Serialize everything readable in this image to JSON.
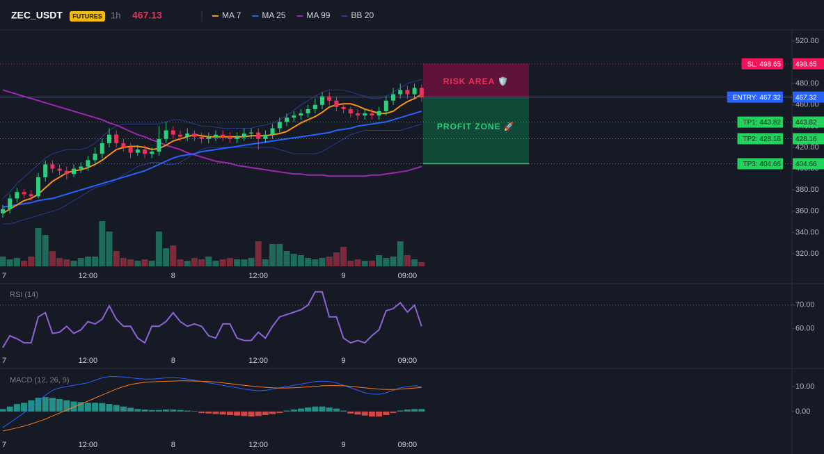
{
  "header": {
    "symbol": "ZEC_USDT",
    "badge": "FUTURES",
    "interval": "1h",
    "price": "467.13"
  },
  "chart_data": [
    {
      "type": "candlestick",
      "xticks": [
        {
          "value": 0,
          "label": "7"
        },
        {
          "value": 12,
          "label": "12:00"
        },
        {
          "value": 24,
          "label": "8"
        },
        {
          "value": 36,
          "label": "12:00"
        },
        {
          "value": 48,
          "label": "9"
        },
        {
          "value": 57,
          "label": "09:00"
        }
      ],
      "ylim": [
        308.2,
        530.5
      ],
      "yticks": [
        {
          "value": 320,
          "label": "320.00"
        },
        {
          "value": 340,
          "label": "340.00"
        },
        {
          "value": 360,
          "label": "360.00"
        },
        {
          "value": 380,
          "label": "380.00"
        },
        {
          "value": 400,
          "label": "400.00"
        },
        {
          "value": 420,
          "label": "420.00"
        },
        {
          "value": 440,
          "label": "440.00"
        },
        {
          "value": 460,
          "label": "460.00"
        },
        {
          "value": 480,
          "label": "480.00"
        },
        {
          "value": 500,
          "label": "500.00"
        },
        {
          "value": 520,
          "label": "520.00"
        }
      ],
      "up_color": "#2bd07f",
      "down_color": "#f0305a",
      "open": [
        358,
        362,
        372,
        378,
        376,
        374,
        392,
        404,
        400,
        398,
        395,
        400,
        402,
        408,
        414,
        424,
        432,
        424,
        420,
        415,
        418,
        414,
        416,
        428,
        436,
        432,
        430,
        433,
        430,
        428,
        430,
        432,
        430,
        428,
        430,
        433,
        434,
        428,
        432,
        438,
        444,
        448,
        450,
        452,
        456,
        460,
        468,
        464,
        458,
        456,
        452,
        450,
        452,
        450,
        454,
        464,
        470,
        474,
        470,
        476
      ],
      "high": [
        366,
        376,
        382,
        381,
        380,
        396,
        408,
        408,
        404,
        402,
        404,
        406,
        412,
        420,
        428,
        438,
        436,
        428,
        424,
        422,
        422,
        420,
        440,
        444,
        440,
        436,
        438,
        436,
        434,
        434,
        436,
        436,
        434,
        434,
        438,
        438,
        438,
        436,
        442,
        448,
        452,
        454,
        456,
        460,
        466,
        472,
        472,
        468,
        462,
        458,
        456,
        456,
        456,
        458,
        468,
        476,
        480,
        478,
        480,
        479
      ],
      "low": [
        354,
        358,
        368,
        372,
        370,
        372,
        388,
        396,
        394,
        390,
        392,
        396,
        398,
        404,
        410,
        420,
        420,
        416,
        410,
        412,
        410,
        410,
        412,
        424,
        428,
        426,
        426,
        426,
        424,
        424,
        426,
        426,
        424,
        424,
        426,
        428,
        418,
        424,
        428,
        434,
        440,
        444,
        446,
        448,
        452,
        456,
        460,
        454,
        452,
        448,
        446,
        446,
        446,
        446,
        450,
        460,
        466,
        466,
        466,
        463
      ],
      "close": [
        362,
        372,
        378,
        376,
        374,
        392,
        404,
        400,
        398,
        395,
        400,
        402,
        408,
        414,
        424,
        432,
        424,
        420,
        415,
        418,
        414,
        416,
        428,
        436,
        432,
        430,
        433,
        430,
        428,
        430,
        432,
        430,
        428,
        430,
        433,
        434,
        428,
        432,
        438,
        444,
        448,
        450,
        452,
        456,
        460,
        468,
        464,
        458,
        456,
        452,
        450,
        452,
        450,
        454,
        464,
        470,
        474,
        470,
        476,
        467
      ],
      "volume": [
        14,
        10,
        12,
        8,
        14,
        55,
        45,
        22,
        12,
        10,
        8,
        12,
        14,
        14,
        65,
        50,
        22,
        12,
        10,
        8,
        10,
        8,
        50,
        26,
        30,
        10,
        8,
        12,
        10,
        14,
        8,
        10,
        12,
        10,
        10,
        12,
        36,
        10,
        32,
        32,
        22,
        18,
        16,
        12,
        10,
        12,
        14,
        20,
        28,
        8,
        10,
        8,
        8,
        16,
        12,
        14,
        36,
        16,
        10,
        6
      ],
      "series": [
        {
          "name": "MA 7",
          "color": "#f7931a",
          "values": [
            358,
            362,
            366,
            370,
            372,
            376,
            382,
            388,
            392,
            396,
            398,
            399,
            401,
            404,
            408,
            413,
            418,
            420,
            421,
            421,
            420,
            418,
            419,
            422,
            426,
            428,
            430,
            432,
            431,
            430,
            430,
            430,
            430,
            430,
            430,
            431,
            431,
            431,
            432,
            433,
            435,
            439,
            443,
            446,
            449,
            453,
            458,
            460,
            461,
            461,
            459,
            456,
            454,
            452,
            452,
            454,
            459,
            463,
            466,
            470
          ]
        },
        {
          "name": "MA 25",
          "color": "#2962ff",
          "values": [
            364,
            365,
            366,
            367,
            368,
            370,
            371,
            372,
            374,
            376,
            378,
            380,
            382,
            384,
            386,
            388,
            390,
            392,
            394,
            396,
            398,
            401,
            404,
            407,
            410,
            412,
            413,
            414,
            416,
            417,
            418,
            419,
            420,
            421,
            422,
            423,
            424,
            425,
            426,
            427,
            428,
            429,
            430,
            431,
            432,
            433,
            434,
            436,
            437,
            438,
            440,
            441,
            442,
            443,
            444,
            446,
            448,
            450,
            452,
            454
          ]
        },
        {
          "name": "MA 99",
          "color": "#9c27b0",
          "values": [
            474,
            472,
            470,
            468,
            466,
            464,
            462,
            460,
            458,
            456,
            454,
            452,
            450,
            448,
            446,
            443,
            441,
            438,
            435,
            432,
            430,
            427,
            425,
            422,
            420,
            418,
            415,
            413,
            411,
            409,
            407,
            406,
            405,
            403,
            402,
            401,
            400,
            399,
            398,
            397,
            396,
            395,
            395,
            394,
            394,
            394,
            393,
            393,
            393,
            393,
            393,
            393,
            394,
            394,
            395,
            396,
            397,
            398,
            400,
            402
          ]
        },
        {
          "name": "BB 20",
          "color": "#2b3a8f",
          "upper": [
            372,
            378,
            386,
            392,
            398,
            404,
            410,
            414,
            416,
            418,
            418,
            418,
            420,
            424,
            430,
            436,
            440,
            442,
            442,
            442,
            442,
            442,
            442,
            444,
            446,
            446,
            444,
            442,
            440,
            440,
            439,
            438,
            438,
            438,
            438,
            438,
            440,
            441,
            443,
            446,
            450,
            455,
            460,
            464,
            468,
            472,
            474,
            474,
            474,
            472,
            470,
            468,
            466,
            466,
            468,
            472,
            476,
            480,
            482,
            484
          ],
          "lower": [
            348,
            348,
            350,
            352,
            354,
            356,
            358,
            360,
            362,
            366,
            370,
            374,
            378,
            382,
            384,
            386,
            390,
            394,
            398,
            402,
            404,
            406,
            406,
            404,
            404,
            406,
            410,
            414,
            418,
            420,
            420,
            420,
            420,
            420,
            420,
            420,
            420,
            420,
            420,
            418,
            416,
            414,
            414,
            414,
            414,
            416,
            420,
            424,
            428,
            432,
            434,
            436,
            436,
            436,
            436,
            436,
            436,
            438,
            440,
            442
          ]
        }
      ],
      "levels": [
        {
          "label": "SL: 498.65",
          "value": 498.65,
          "color": "#f0145a"
        },
        {
          "label": "ENTRY: 467.32",
          "value": 467.32,
          "color": "#2962ff"
        },
        {
          "label": "TP1: 443.82",
          "value": 443.82,
          "color": "#22d35e"
        },
        {
          "label": "TP2: 428.16",
          "value": 428.16,
          "color": "#22d35e"
        },
        {
          "label": "TP3: 404.66",
          "value": 404.66,
          "color": "#22d35e"
        }
      ],
      "zones": {
        "risk": "RISK AREA 🛡️",
        "profit": "PROFIT ZONE 🚀"
      }
    },
    {
      "type": "line",
      "title": "RSI (14)",
      "xticks": [
        {
          "value": 0,
          "label": "7"
        },
        {
          "value": 12,
          "label": "12:00"
        },
        {
          "value": 24,
          "label": "8"
        },
        {
          "value": 36,
          "label": "12:00"
        },
        {
          "value": 48,
          "label": "9"
        },
        {
          "value": 57,
          "label": "09:00"
        }
      ],
      "ylim": [
        49,
        78.5
      ],
      "yticks": [
        {
          "value": 60,
          "label": "60.00"
        },
        {
          "value": 70,
          "label": "70.00"
        }
      ],
      "levels": [
        70
      ],
      "color": "#8e63d8",
      "values": [
        52,
        57,
        55.7,
        54,
        54,
        65,
        66.8,
        58,
        58.5,
        61,
        58,
        59.5,
        63,
        62,
        64,
        69.7,
        64,
        61,
        61,
        56,
        54,
        61,
        61,
        63,
        66.8,
        63,
        61,
        62,
        61,
        57,
        56,
        62,
        62,
        56,
        55,
        55,
        58.5,
        56,
        61,
        65,
        66,
        67,
        68,
        70,
        75.6,
        75.6,
        65,
        65,
        56,
        54,
        55,
        54,
        57,
        59.5,
        67.6,
        68.5,
        71,
        67,
        70,
        61
      ]
    },
    {
      "type": "macd",
      "title": "MACD (12, 26, 9)",
      "xticks": [
        {
          "value": 0,
          "label": "7"
        },
        {
          "value": 12,
          "label": "12:00"
        },
        {
          "value": 24,
          "label": "8"
        },
        {
          "value": 36,
          "label": "12:00"
        },
        {
          "value": 48,
          "label": "9"
        },
        {
          "value": 57,
          "label": "09:00"
        }
      ],
      "ylim": [
        -10.6,
        16.4
      ],
      "yticks": [
        {
          "value": 0,
          "label": "0.00"
        },
        {
          "value": 10,
          "label": "10.00"
        }
      ],
      "hist": [
        1,
        2,
        3,
        3.5,
        4.5,
        5.5,
        5.8,
        5.5,
        5,
        4.5,
        4,
        3.8,
        3.5,
        3.5,
        3.4,
        3,
        2.6,
        2,
        1.5,
        1,
        0.8,
        0.6,
        0.6,
        0.8,
        0.8,
        0.6,
        0.4,
        0.2,
        -0.6,
        -0.8,
        -1,
        -1.2,
        -1.4,
        -1.6,
        -1.8,
        -2,
        -1.8,
        -1.4,
        -1,
        -0.6,
        0.4,
        0.8,
        1.2,
        1.6,
        2,
        2,
        1.6,
        1.2,
        0.4,
        -0.8,
        -1.2,
        -1.6,
        -2,
        -2,
        -1.4,
        -0.6,
        0.4,
        0.8,
        1,
        1
      ],
      "hist_up_color": "#26a69a",
      "hist_down_color": "#ef5350",
      "series": [
        {
          "color": "#2962ff",
          "values": [
            -6.4,
            -4.5,
            -2.5,
            -0.5,
            1.5,
            4,
            6.5,
            8.5,
            9.5,
            10,
            10.5,
            11,
            11.5,
            12.5,
            13.5,
            14,
            14,
            13.8,
            13.5,
            13.2,
            13,
            13,
            13.2,
            13.5,
            13.6,
            13.4,
            13,
            12.5,
            12,
            11.5,
            11,
            10.5,
            10,
            9.5,
            9,
            8.6,
            8.3,
            8.5,
            9,
            9.5,
            10,
            10.5,
            11,
            11.5,
            12,
            12.2,
            12,
            11.5,
            10.5,
            9.5,
            8.5,
            7.5,
            7,
            6.9,
            7.5,
            8.5,
            9.5,
            10,
            10.3,
            10
          ]
        },
        {
          "color": "#ff7a1a",
          "values": [
            -7.8,
            -7.2,
            -6.5,
            -5.8,
            -5,
            -4,
            -3,
            -1.8,
            -0.6,
            0.6,
            1.8,
            3,
            4.2,
            5.4,
            6.6,
            7.8,
            9,
            10,
            10.8,
            11.3,
            11.7,
            11.9,
            12,
            12.1,
            12.2,
            12.3,
            12.3,
            12.2,
            12.1,
            12,
            11.8,
            11.5,
            11.2,
            10.8,
            10.5,
            10.2,
            9.9,
            9.7,
            9.5,
            9.4,
            9.4,
            9.5,
            9.7,
            9.9,
            10.1,
            10.3,
            10.4,
            10.4,
            10.3,
            10.1,
            9.8,
            9.5,
            9.2,
            9,
            8.8,
            8.8,
            9,
            9.2,
            9.4,
            9.6
          ]
        }
      ]
    }
  ]
}
